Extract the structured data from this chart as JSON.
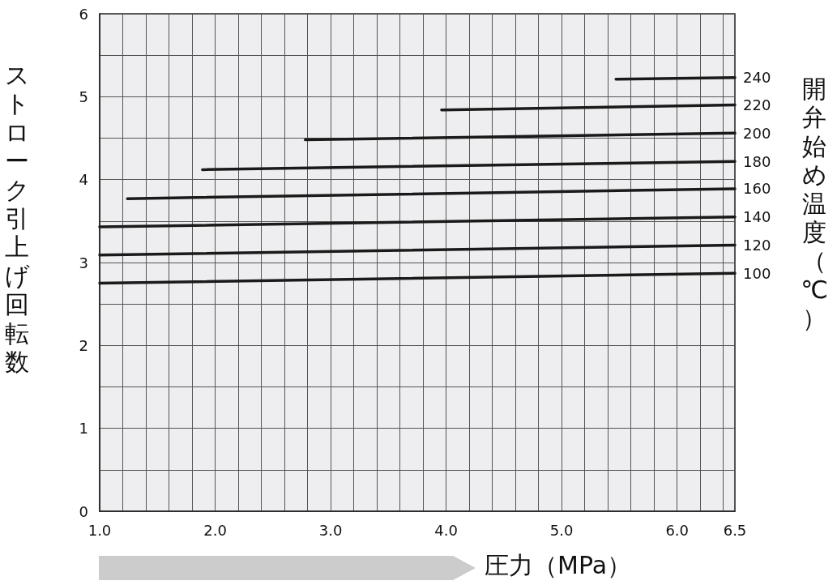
{
  "chart_data": {
    "type": "line",
    "xlabel": "圧力（MPa）",
    "ylabel": "ストローク引上げ回転数",
    "y2label": "開弁始め温度（℃）",
    "xlim": [
      1,
      6.5
    ],
    "xticks": [
      {
        "value": 1,
        "label": "1.0"
      },
      {
        "value": 1.2,
        "label": null
      },
      {
        "value": 1.4,
        "label": null
      },
      {
        "value": 1.6,
        "label": null
      },
      {
        "value": 1.8,
        "label": null
      },
      {
        "value": 2,
        "label": "2.0"
      },
      {
        "value": 2.2,
        "label": null
      },
      {
        "value": 2.4,
        "label": null
      },
      {
        "value": 2.6,
        "label": null
      },
      {
        "value": 2.8,
        "label": null
      },
      {
        "value": 3,
        "label": "3.0"
      },
      {
        "value": 3.2,
        "label": null
      },
      {
        "value": 3.4,
        "label": null
      },
      {
        "value": 3.6,
        "label": null
      },
      {
        "value": 3.8,
        "label": null
      },
      {
        "value": 4,
        "label": "4.0"
      },
      {
        "value": 4.2,
        "label": null
      },
      {
        "value": 4.4,
        "label": null
      },
      {
        "value": 4.6,
        "label": null
      },
      {
        "value": 4.8,
        "label": null
      },
      {
        "value": 5,
        "label": "5.0"
      },
      {
        "value": 5.2,
        "label": null
      },
      {
        "value": 5.4,
        "label": null
      },
      {
        "value": 5.6,
        "label": null
      },
      {
        "value": 5.8,
        "label": null
      },
      {
        "value": 6,
        "label": "6.0"
      },
      {
        "value": 6.2,
        "label": null
      },
      {
        "value": 6.4,
        "label": null
      },
      {
        "value": 6.5,
        "label": "6.5"
      }
    ],
    "ylim": [
      0,
      6
    ],
    "yticks": [
      0,
      {
        "value": 0.5,
        "label": null
      },
      1,
      {
        "value": 1.5,
        "label": null
      },
      2,
      {
        "value": 2.5,
        "label": null
      },
      3,
      {
        "value": 3.5,
        "label": null
      },
      4,
      {
        "value": 4.5,
        "label": null
      },
      5,
      {
        "value": 5.5,
        "label": null
      },
      6
    ],
    "grid": true,
    "legend": false,
    "marker": "none",
    "line_style": "solid",
    "series": [
      {
        "name": "240",
        "color": "#1a1a1a",
        "x": [
          5.47,
          6.5
        ],
        "values": [
          5.21,
          5.23
        ]
      },
      {
        "name": "220",
        "color": "#1a1a1a",
        "x": [
          3.96,
          6.5
        ],
        "values": [
          4.84,
          4.9
        ]
      },
      {
        "name": "200",
        "color": "#1a1a1a",
        "x": [
          2.78,
          6.5
        ],
        "values": [
          4.48,
          4.56
        ]
      },
      {
        "name": "180",
        "color": "#1a1a1a",
        "x": [
          1.89,
          6.5
        ],
        "values": [
          4.12,
          4.22
        ]
      },
      {
        "name": "160",
        "color": "#1a1a1a",
        "x": [
          1.24,
          6.5
        ],
        "values": [
          3.77,
          3.89
        ]
      },
      {
        "name": "140",
        "color": "#1a1a1a",
        "x": [
          1,
          6.5
        ],
        "values": [
          3.43,
          3.55
        ]
      },
      {
        "name": "120",
        "color": "#1a1a1a",
        "x": [
          1,
          6.5
        ],
        "values": [
          3.09,
          3.21
        ]
      },
      {
        "name": "100",
        "color": "#1a1a1a",
        "x": [
          1,
          6.5
        ],
        "values": [
          2.75,
          2.87
        ]
      }
    ]
  }
}
